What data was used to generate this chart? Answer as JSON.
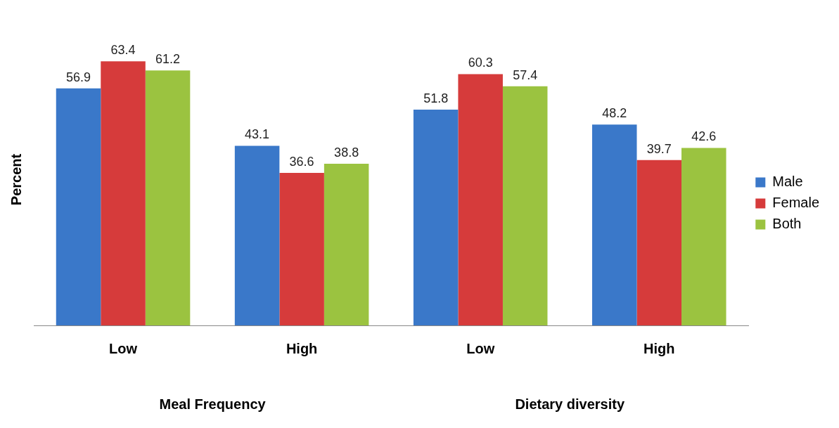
{
  "chart_data": {
    "type": "bar",
    "ylabel": "Percent",
    "categories": [
      "Low",
      "High",
      "Low",
      "High"
    ],
    "series": [
      {
        "name": "Male",
        "color": "#3a78c9",
        "values": [
          56.9,
          43.1,
          51.8,
          48.2
        ]
      },
      {
        "name": "Female",
        "color": "#d63b3b",
        "values": [
          63.4,
          36.6,
          60.3,
          39.7
        ]
      },
      {
        "name": "Both",
        "color": "#9bc340",
        "values": [
          61.2,
          38.8,
          57.4,
          42.6
        ]
      }
    ],
    "data_labels": true,
    "legend": "right",
    "grid": false,
    "annotations": [
      "Meal Frequency",
      "Dietary diversity"
    ]
  }
}
